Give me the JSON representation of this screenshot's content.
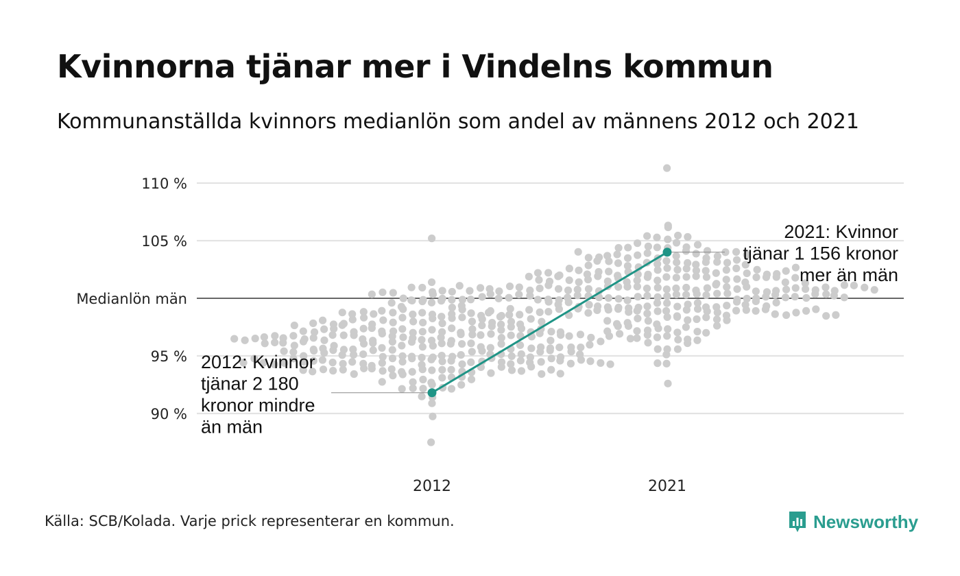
{
  "title": "Kvinnorna tjänar mer i Vindelns kommun",
  "subtitle": "Kommunanställda kvinnors medianlön som andel av männens 2012 och 2021",
  "source": "Källa: SCB/Kolada. Varje prick representerar en kommun.",
  "brand": {
    "name": "Newsworthy",
    "icon": "newsworthy-logo-icon"
  },
  "colors": {
    "dots": "#cccccc",
    "highlight": "#1f9486",
    "grid": "#e3e3e3",
    "baseline": "#333333",
    "brand": "#2a9d8f"
  },
  "chart_data": {
    "type": "scatter",
    "title": "Kvinnorna tjänar mer i Vindelns kommun",
    "subtitle": "Kommunanställda kvinnors medianlön som andel av männens 2012 och 2021",
    "categories": [
      "2012",
      "2021"
    ],
    "ylim": [
      87,
      111
    ],
    "y_ticks": [
      {
        "value": 110,
        "label": "110 %"
      },
      {
        "value": 105,
        "label": "105 %"
      },
      {
        "value": 100,
        "label": "Medianlön män"
      },
      {
        "value": 95,
        "label": "95 %"
      },
      {
        "value": 90,
        "label": "90 %"
      }
    ],
    "grid": true,
    "distribution": [
      {
        "category": "2012",
        "n": 290,
        "mean": 96.0,
        "sd": 2.2,
        "min": 87.5,
        "max": 105.2
      },
      {
        "category": "2021",
        "n": 290,
        "mean": 100.3,
        "sd": 2.3,
        "min": 92.6,
        "max": 111.3
      }
    ],
    "highlight": {
      "name": "Vindeln",
      "points": [
        {
          "x": "2012",
          "y": 91.8
        },
        {
          "x": "2021",
          "y": 104.0
        }
      ]
    },
    "annotations": [
      {
        "x": "2012",
        "y": 91.8,
        "lines": [
          "2012: Kvinnor",
          "tjänar 2 180",
          "kronor mindre",
          "än män"
        ]
      },
      {
        "x": "2021",
        "y": 104.0,
        "lines": [
          "2021: Kvinnor",
          "tjänar 1 156 kronor",
          "mer än män"
        ]
      }
    ]
  }
}
